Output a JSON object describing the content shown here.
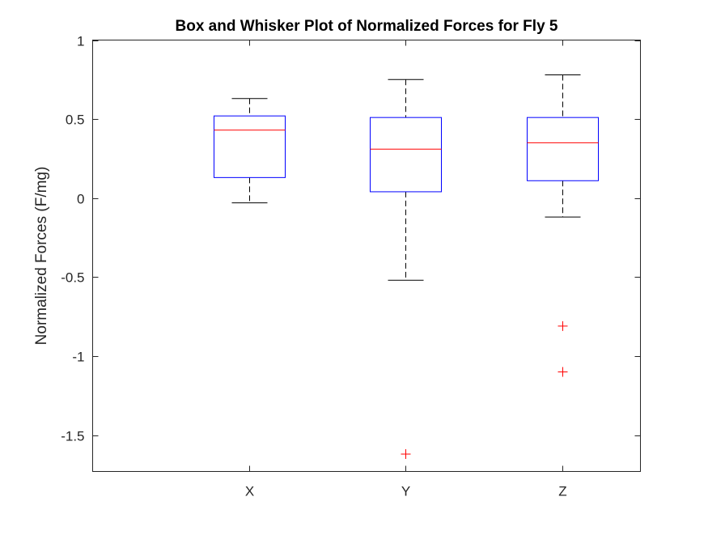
{
  "chart_data": {
    "type": "boxplot",
    "title": "Box and Whisker Plot of Normalized Forces for Fly 5",
    "xlabel": "",
    "ylabel": "Normalized Forces (F/mg)",
    "ylim": [
      -1.73,
      1
    ],
    "yticks": [
      1,
      0.5,
      0,
      -0.5,
      -1,
      -1.5
    ],
    "ytick_labels": [
      "1",
      "0.5",
      "0",
      "-0.5",
      "-1",
      "-1.5"
    ],
    "categories": [
      "X",
      "Y",
      "Z"
    ],
    "grid": false,
    "legend": "none",
    "boxes": [
      {
        "category": "X",
        "whisker_low": -0.03,
        "q1": 0.13,
        "median": 0.43,
        "q3": 0.52,
        "whisker_high": 0.63,
        "outliers": []
      },
      {
        "category": "Y",
        "whisker_low": -0.52,
        "q1": 0.04,
        "median": 0.31,
        "q3": 0.51,
        "whisker_high": 0.75,
        "outliers": [
          -1.62
        ]
      },
      {
        "category": "Z",
        "whisker_low": -0.12,
        "q1": 0.11,
        "median": 0.35,
        "q3": 0.51,
        "whisker_high": 0.78,
        "outliers": [
          -0.81,
          -1.1
        ]
      }
    ],
    "colors": {
      "box": "#0000ff",
      "median": "#ff0000",
      "whisker": "#000000",
      "outlier": "#ff0000",
      "axis": "#262626"
    }
  }
}
